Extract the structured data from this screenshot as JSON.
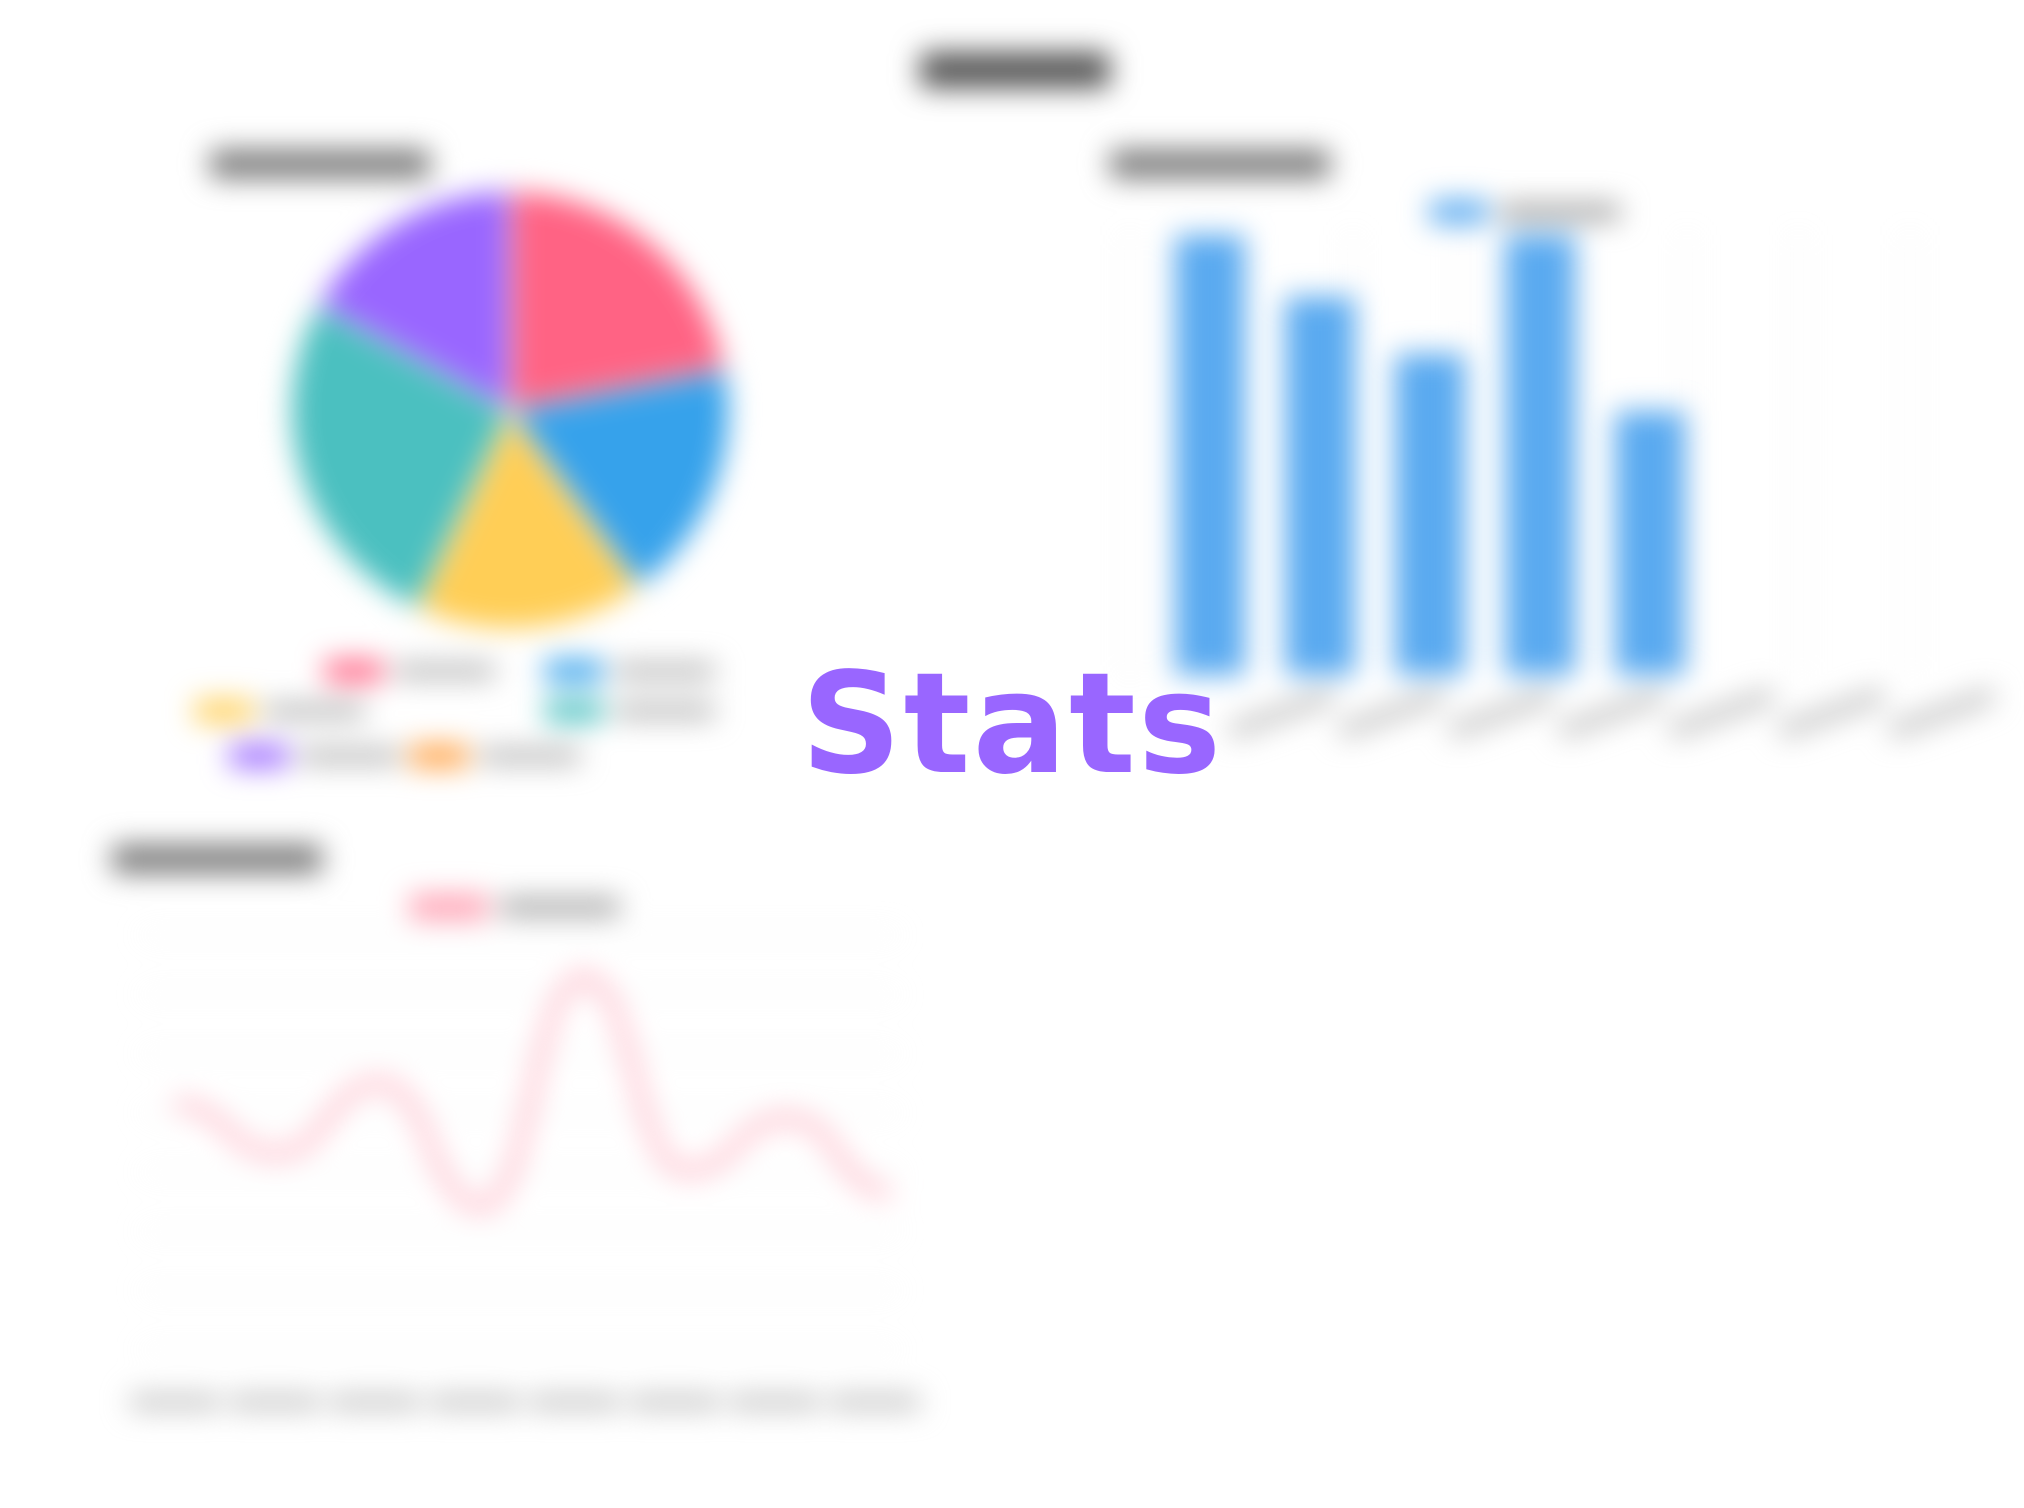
{
  "overlay": {
    "title": "Stats",
    "color": "#9966ff"
  },
  "chart_data": [
    {
      "type": "pie",
      "values": [
        22,
        18,
        17,
        26,
        17
      ],
      "colors": [
        "#ff6384",
        "#36a2eb",
        "#ffce56",
        "#4bc0c0",
        "#9966ff"
      ],
      "legend_placement": "bottom"
    },
    {
      "type": "bar",
      "values": [
        100,
        86,
        73,
        100,
        60
      ],
      "color": "#5aaaf0",
      "grid": true,
      "legend_placement": "top"
    },
    {
      "type": "line",
      "values": [
        64,
        50,
        70,
        35,
        100,
        45,
        60,
        39
      ],
      "color": "#ff6384",
      "grid": true,
      "legend_placement": "top"
    }
  ]
}
